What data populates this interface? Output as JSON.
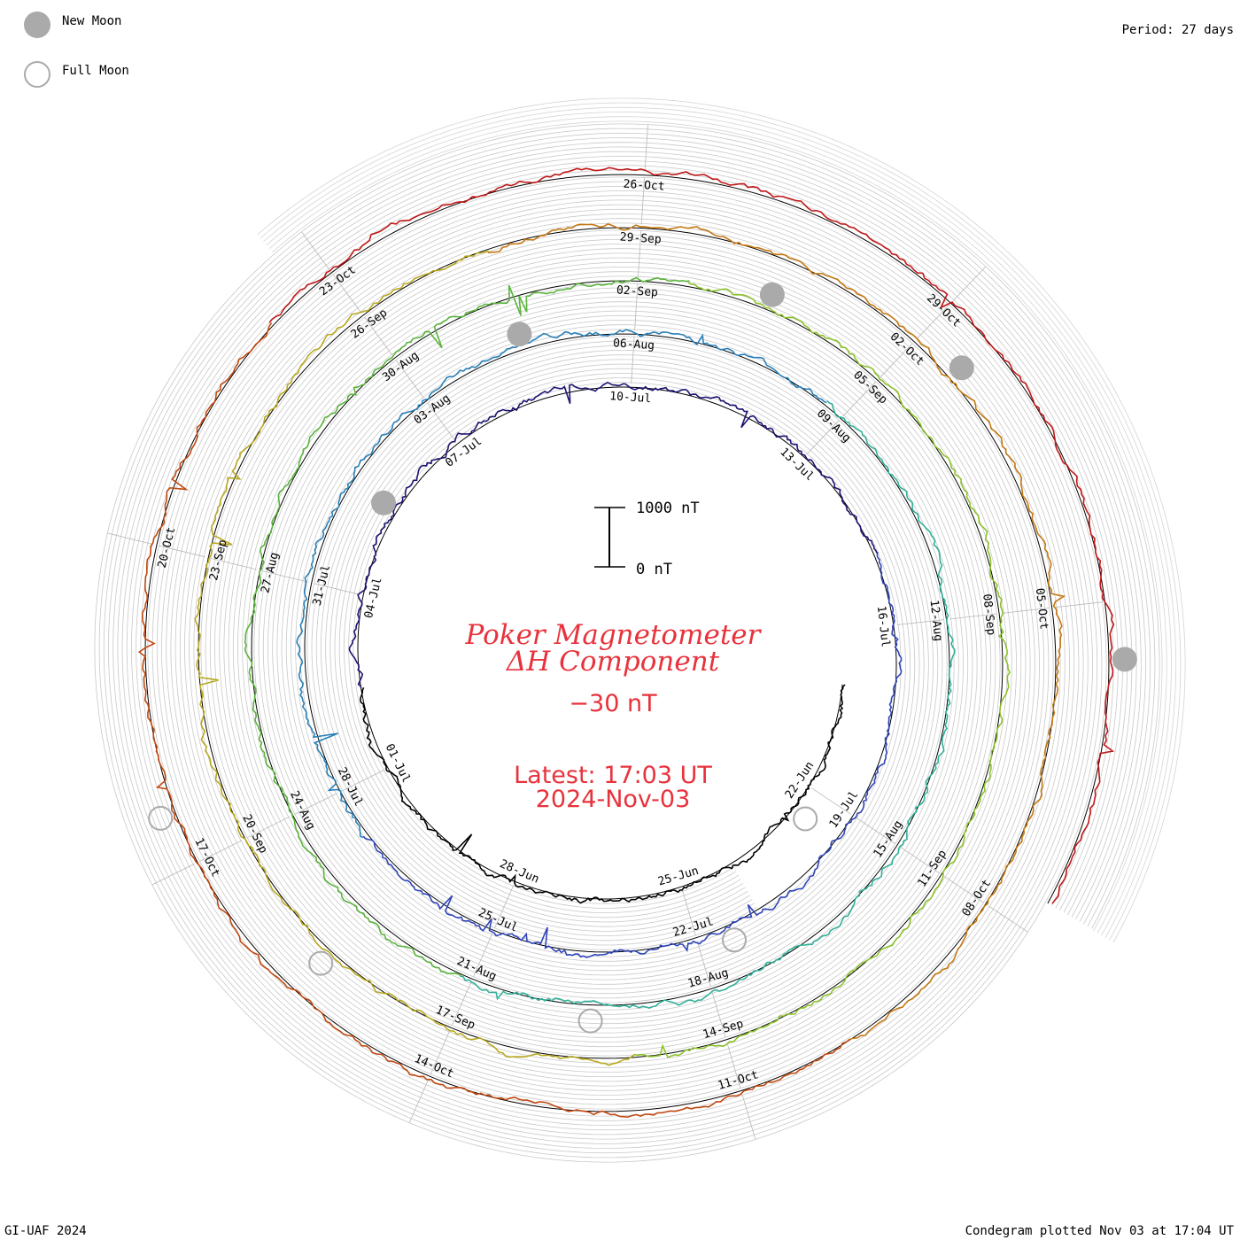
{
  "legend": {
    "new_moon_label": "New Moon",
    "full_moon_label": "Full Moon",
    "new_moon_color": "#aaaaaa",
    "full_moon_color": "#aaaaaa"
  },
  "period_label": "Period: 27 days",
  "footer": {
    "left": "GI-UAF 2024",
    "right": "Condegram plotted Nov 03 at 17:04 UT"
  },
  "scale_bar": {
    "top_label": "1000 nT",
    "bottom_label": "0 nT"
  },
  "chart_data": {
    "type": "line",
    "subtype": "condegram-spiral",
    "title": "Poker Magnetometer",
    "subtitle": "ΔH Component",
    "current_value": "−30 nT",
    "latest_time": "Latest: 17:03 UT",
    "latest_date": "2024-Nov-03",
    "period_days": 27,
    "start_date": "2024-06-20",
    "end_date": "2024-11-03",
    "scale_nT": 1000,
    "colors": [
      "#000000",
      "#1c1470",
      "#3045b8",
      "#2a80b8",
      "#32b098",
      "#5ab33c",
      "#8cc12c",
      "#b8a820",
      "#c47812",
      "#c04810",
      "#c01818"
    ],
    "date_labels": [
      "22-Jun",
      "25-Jun",
      "28-Jun",
      "01-Jul",
      "04-Jul",
      "07-Jul",
      "10-Jul",
      "13-Jul",
      "16-Jul",
      "19-Jul",
      "22-Jul",
      "25-Jul",
      "28-Jul",
      "31-Jul",
      "03-Aug",
      "06-Aug",
      "09-Aug",
      "12-Aug",
      "15-Aug",
      "18-Aug",
      "21-Aug",
      "24-Aug",
      "27-Aug",
      "30-Aug",
      "02-Sep",
      "05-Sep",
      "08-Sep",
      "11-Sep",
      "14-Sep",
      "17-Sep",
      "20-Sep",
      "23-Sep",
      "26-Sep",
      "29-Sep",
      "02-Oct",
      "05-Oct",
      "08-Oct",
      "11-Oct",
      "14-Oct",
      "17-Oct",
      "20-Oct",
      "23-Oct",
      "26-Oct",
      "29-Oct"
    ],
    "new_moons": [
      "2024-07-05",
      "2024-08-04",
      "2024-09-03",
      "2024-10-02",
      "2024-11-01"
    ],
    "full_moons": [
      "2024-06-22",
      "2024-07-21",
      "2024-08-19",
      "2024-09-18",
      "2024-10-17"
    ]
  }
}
